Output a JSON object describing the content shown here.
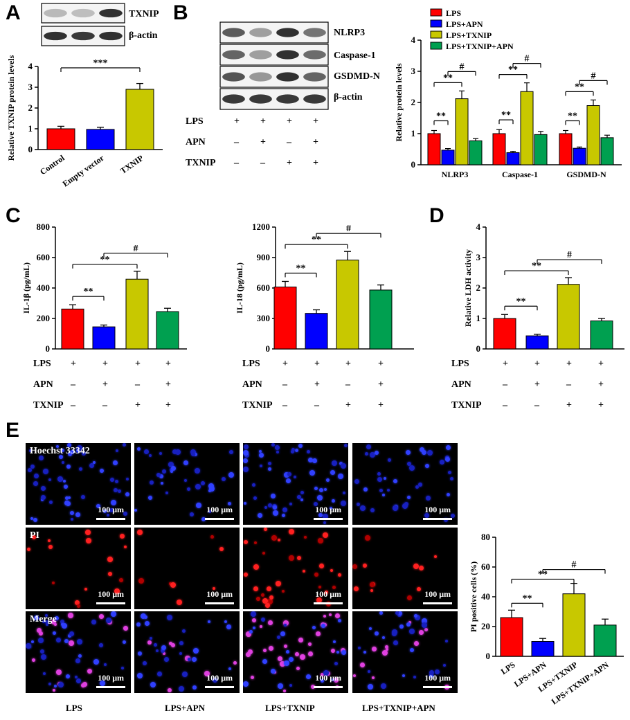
{
  "panels": {
    "A": {
      "letter": "A",
      "blot_labels": [
        "TXNIP",
        "β-actin"
      ]
    },
    "B": {
      "letter": "B",
      "blot_labels": [
        "NLRP3",
        "Caspase-1",
        "GSDMD-N",
        "β-actin"
      ]
    },
    "C": {
      "letter": "C"
    },
    "D": {
      "letter": "D"
    },
    "E": {
      "letter": "E"
    }
  },
  "conditions": {
    "row_labels": [
      "LPS",
      "APN",
      "TXNIP"
    ],
    "matrix": [
      [
        "+",
        "+",
        "+",
        "+"
      ],
      [
        "–",
        "+",
        "–",
        "+"
      ],
      [
        "–",
        "–",
        "+",
        "+"
      ]
    ]
  },
  "colors": {
    "red": "#ff0000",
    "blue": "#0000ff",
    "yellow": "#c8c800",
    "green": "#00a050"
  },
  "significance": {
    "double": "**",
    "triple": "***",
    "hash": "#"
  },
  "microscopy": {
    "stains": [
      "Hoechst 33342",
      "PI",
      "Merge"
    ],
    "scale": "100 μm",
    "columns": [
      "LPS",
      "LPS+APN",
      "LPS+TXNIP",
      "LPS+TXNIP+APN"
    ]
  },
  "chart_data": [
    {
      "id": "A",
      "type": "bar",
      "categories": [
        "Control",
        "Empty vector",
        "TXNIP"
      ],
      "values": [
        1.0,
        0.97,
        2.9
      ],
      "errors": [
        0.12,
        0.1,
        0.28
      ],
      "ylabel": "Relative TXNIP protein levels",
      "ylim": [
        0,
        4
      ],
      "yticks": [
        0,
        1,
        2,
        3,
        4
      ],
      "colors": [
        "#ff0000",
        "#0000ff",
        "#c8c800"
      ]
    },
    {
      "id": "B",
      "type": "bar",
      "categories": [
        "NLRP3",
        "Caspase-1",
        "GSDMD-N"
      ],
      "series": [
        {
          "name": "LPS",
          "values": [
            1.0,
            1.0,
            1.0
          ],
          "errors": [
            0.1,
            0.13,
            0.1
          ]
        },
        {
          "name": "LPS+APN",
          "values": [
            0.47,
            0.39,
            0.53
          ],
          "errors": [
            0.05,
            0.04,
            0.04
          ]
        },
        {
          "name": "LPS+TXNIP",
          "values": [
            2.12,
            2.35,
            1.9
          ],
          "errors": [
            0.25,
            0.28,
            0.18
          ]
        },
        {
          "name": "LPS+TXNIP+APN",
          "values": [
            0.77,
            0.97,
            0.87
          ],
          "errors": [
            0.07,
            0.1,
            0.08
          ]
        }
      ],
      "ylabel": "Relative protein levels",
      "ylim": [
        0,
        4
      ],
      "yticks": [
        0,
        1,
        2,
        3,
        4
      ]
    },
    {
      "id": "C1",
      "type": "bar",
      "values": [
        262,
        145,
        458,
        245
      ],
      "errors": [
        28,
        12,
        52,
        22
      ],
      "ylabel": "IL-1β (pg/mL)",
      "ylim": [
        0,
        800
      ],
      "yticks": [
        0,
        200,
        400,
        600,
        800
      ]
    },
    {
      "id": "C2",
      "type": "bar",
      "values": [
        610,
        350,
        875,
        580
      ],
      "errors": [
        55,
        35,
        85,
        50
      ],
      "ylabel": "IL-18 (pg/mL)",
      "ylim": [
        0,
        1200
      ],
      "yticks": [
        0,
        300,
        600,
        900,
        1200
      ]
    },
    {
      "id": "D",
      "type": "bar",
      "values": [
        1.0,
        0.43,
        2.12,
        0.92
      ],
      "errors": [
        0.13,
        0.05,
        0.22,
        0.08
      ],
      "ylabel": "Relative LDH activity",
      "ylim": [
        0,
        4
      ],
      "yticks": [
        0,
        1,
        2,
        3,
        4
      ]
    },
    {
      "id": "E",
      "type": "bar",
      "categories": [
        "LPS",
        "LPS+APN",
        "LPS+TXNIP",
        "LPS+TXNIP+APN"
      ],
      "values": [
        26,
        10,
        42,
        21
      ],
      "errors": [
        5,
        2,
        7,
        4
      ],
      "ylabel": "PI positive cells (%)",
      "ylim": [
        0,
        80
      ],
      "yticks": [
        0,
        20,
        40,
        60,
        80
      ]
    }
  ]
}
